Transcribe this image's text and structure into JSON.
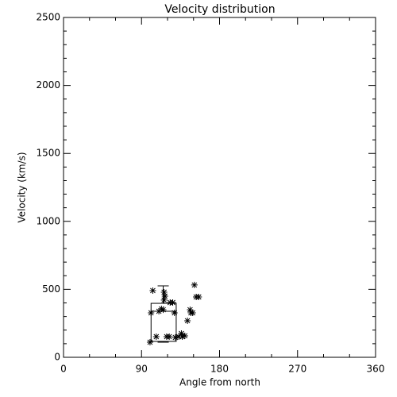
{
  "chart_data": {
    "type": "scatter",
    "title": "Velocity distribution",
    "xlabel": "Angle from north",
    "ylabel": "Velocity (km/s)",
    "x": [
      99.8,
      103,
      101,
      107,
      110,
      113,
      115,
      116,
      116,
      117,
      119,
      122,
      123,
      126,
      128,
      129,
      133,
      136,
      137,
      140,
      143,
      146,
      147,
      149,
      151,
      153,
      156
    ],
    "values": [
      111,
      491,
      327,
      152,
      339,
      356,
      350,
      421,
      479,
      450,
      152,
      152,
      403,
      403,
      327,
      146,
      152,
      175,
      152,
      158,
      269,
      350,
      327,
      327,
      532,
      444,
      444
    ],
    "color": "#000000",
    "box": {
      "x_range": [
        101,
        130
      ],
      "x": 115,
      "whisker_low": 111,
      "q1": 117,
      "median": 339,
      "q3": 397,
      "whisker_high": 526
    },
    "xlim": [
      0,
      360
    ],
    "xticks": [
      0,
      90,
      180,
      270,
      360
    ],
    "xminorticks": [
      30,
      60,
      120,
      150,
      210,
      240,
      300,
      330
    ],
    "ylim": [
      0,
      2500
    ],
    "yticks": [
      0,
      500,
      1000,
      1500,
      2000,
      2500
    ],
    "yminorticks": [
      100,
      200,
      300,
      400,
      600,
      700,
      800,
      900,
      1100,
      1200,
      1300,
      1400,
      1600,
      1700,
      1800,
      1900,
      2100,
      2200,
      2300,
      2400
    ],
    "grid": false
  }
}
